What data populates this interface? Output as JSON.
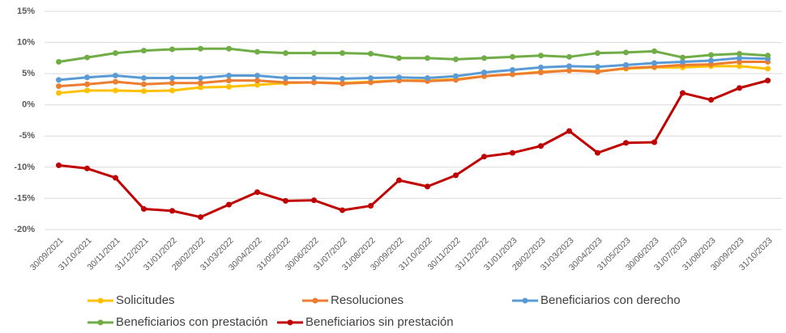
{
  "chart_data": {
    "type": "line",
    "categories": [
      "30/09/2021",
      "31/10/2021",
      "30/11/2021",
      "31/12/2021",
      "31/01/2022",
      "28/02/2022",
      "31/03/2022",
      "30/04/2022",
      "31/05/2022",
      "30/06/2022",
      "31/07/2022",
      "31/08/2022",
      "30/09/2022",
      "31/10/2022",
      "30/11/2022",
      "31/12/2022",
      "31/01/2023",
      "28/02/2023",
      "31/03/2023",
      "30/04/2023",
      "31/05/2023",
      "30/06/2023",
      "31/07/2023",
      "31/08/2023",
      "30/09/2023",
      "31/10/2023"
    ],
    "series": [
      {
        "name": "Solicitudes",
        "color": "#FFC000",
        "values": [
          1.9,
          2.3,
          2.3,
          2.2,
          2.3,
          2.8,
          2.9,
          3.2,
          3.5,
          3.6,
          3.5,
          3.7,
          3.9,
          3.9,
          4.1,
          4.6,
          4.9,
          5.3,
          5.5,
          5.4,
          5.8,
          6.0,
          6.0,
          6.2,
          6.2,
          5.8
        ]
      },
      {
        "name": "Resoluciones",
        "color": "#ED7D31",
        "values": [
          3.0,
          3.3,
          3.7,
          3.3,
          3.5,
          3.5,
          3.9,
          3.9,
          3.6,
          3.6,
          3.4,
          3.6,
          3.9,
          3.8,
          4.0,
          4.6,
          4.9,
          5.2,
          5.5,
          5.3,
          5.9,
          6.1,
          6.4,
          6.5,
          6.9,
          6.9
        ]
      },
      {
        "name": "Beneficiarios con derecho",
        "color": "#5B9BD5",
        "values": [
          4.0,
          4.4,
          4.7,
          4.3,
          4.3,
          4.3,
          4.7,
          4.7,
          4.3,
          4.3,
          4.2,
          4.3,
          4.4,
          4.3,
          4.6,
          5.2,
          5.6,
          6.0,
          6.2,
          6.1,
          6.4,
          6.7,
          6.9,
          7.1,
          7.5,
          7.4
        ]
      },
      {
        "name": "Beneficiarios con prestación",
        "color": "#70AD47",
        "values": [
          6.9,
          7.6,
          8.3,
          8.7,
          8.9,
          9.0,
          9.0,
          8.5,
          8.3,
          8.3,
          8.3,
          8.2,
          7.5,
          7.5,
          7.3,
          7.5,
          7.7,
          7.9,
          7.7,
          8.3,
          8.4,
          8.6,
          7.6,
          8.0,
          8.2,
          7.9
        ]
      },
      {
        "name": "Beneficiarios sin prestación",
        "color": "#C00000",
        "values": [
          -9.7,
          -10.2,
          -11.7,
          -16.7,
          -17.0,
          -18.0,
          -16.0,
          -14.0,
          -15.4,
          -15.3,
          -16.9,
          -16.2,
          -12.1,
          -13.1,
          -11.3,
          -8.3,
          -7.7,
          -6.6,
          -4.2,
          -7.7,
          -6.1,
          -6.0,
          1.9,
          0.8,
          2.7,
          3.9
        ]
      }
    ],
    "ylim": [
      -20,
      15
    ],
    "yticks": [
      {
        "value": -20,
        "label": "-20%"
      },
      {
        "value": -15,
        "label": "-15%"
      },
      {
        "value": -10,
        "label": "-10%"
      },
      {
        "value": -5,
        "label": "-5%"
      },
      {
        "value": 0,
        "label": "0%"
      },
      {
        "value": 5,
        "label": "5%"
      },
      {
        "value": 10,
        "label": "10%"
      },
      {
        "value": 15,
        "label": "15%"
      }
    ],
    "grid": true
  }
}
